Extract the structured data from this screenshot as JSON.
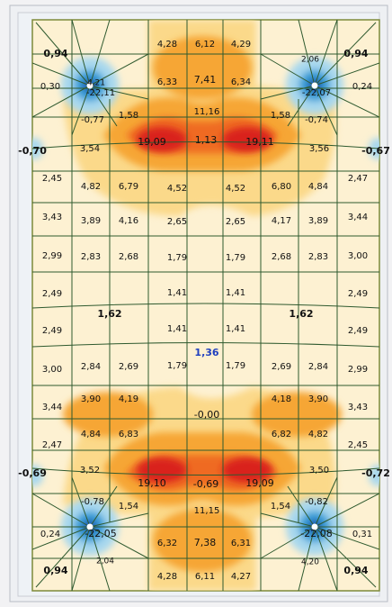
{
  "colors": {
    "background": "#f2f2f4",
    "slab": "#fdf1d2",
    "mesh": "#2f5a2f",
    "outline": "#7d8a3a",
    "low_yellow": "#fbd98a",
    "mid_orange": "#f6a636",
    "high_orange": "#ef6a22",
    "peak_red": "#d9201a",
    "neg_light_blue": "#a8d8ee",
    "neg_blue": "#3aa0d8",
    "neg_dark_blue": "#1b4aa8",
    "label_text": "#111111",
    "center_label": "#1f3fbf"
  },
  "labels": [
    {
      "text": "0,94"
    },
    {
      "text": "4,21"
    },
    {
      "text": "4,28"
    },
    {
      "text": "6,12"
    },
    {
      "text": "4,29"
    },
    {
      "text": "2,06"
    },
    {
      "text": "0,94"
    },
    {
      "text": "0,30"
    },
    {
      "text": "6,33"
    },
    {
      "text": "7,41"
    },
    {
      "text": "6,34"
    },
    {
      "text": "0,24"
    },
    {
      "text": "-22,11"
    },
    {
      "text": "-22,07"
    },
    {
      "text": "-0,77"
    },
    {
      "text": "1,58"
    },
    {
      "text": "11,16"
    },
    {
      "text": "1,58"
    },
    {
      "text": "-0,74"
    },
    {
      "text": "-0,70"
    },
    {
      "text": "3,54"
    },
    {
      "text": "19,09"
    },
    {
      "text": "1,13"
    },
    {
      "text": "19,11"
    },
    {
      "text": "3,56"
    },
    {
      "text": "-0,67"
    },
    {
      "text": "2,45"
    },
    {
      "text": "4,82"
    },
    {
      "text": "6,79"
    },
    {
      "text": "4,52"
    },
    {
      "text": "4,52"
    },
    {
      "text": "6,80"
    },
    {
      "text": "4,84"
    },
    {
      "text": "2,47"
    },
    {
      "text": "3,43"
    },
    {
      "text": "3,89"
    },
    {
      "text": "4,16"
    },
    {
      "text": "2,65"
    },
    {
      "text": "2,65"
    },
    {
      "text": "4,17"
    },
    {
      "text": "3,89"
    },
    {
      "text": "3,44"
    },
    {
      "text": "2,99"
    },
    {
      "text": "2,83"
    },
    {
      "text": "2,68"
    },
    {
      "text": "1,79"
    },
    {
      "text": "1,79"
    },
    {
      "text": "2,68"
    },
    {
      "text": "2,83"
    },
    {
      "text": "3,00"
    },
    {
      "text": "2,49"
    },
    {
      "text": "1,41"
    },
    {
      "text": "1,41"
    },
    {
      "text": "2,49"
    },
    {
      "text": "1,62"
    },
    {
      "text": "1,62"
    },
    {
      "text": "2,49"
    },
    {
      "text": "1,41"
    },
    {
      "text": "1,41"
    },
    {
      "text": "2,49"
    },
    {
      "text": "1,36"
    },
    {
      "text": "3,00"
    },
    {
      "text": "2,84"
    },
    {
      "text": "2,69"
    },
    {
      "text": "1,79"
    },
    {
      "text": "1,79"
    },
    {
      "text": "2,69"
    },
    {
      "text": "2,84"
    },
    {
      "text": "2,99"
    },
    {
      "text": "3,44"
    },
    {
      "text": "3,90"
    },
    {
      "text": "4,19"
    },
    {
      "text": "-0,00"
    },
    {
      "text": "4,18"
    },
    {
      "text": "3,90"
    },
    {
      "text": "3,43"
    },
    {
      "text": "2,47"
    },
    {
      "text": "4,84"
    },
    {
      "text": "6,83"
    },
    {
      "text": "6,82"
    },
    {
      "text": "4,82"
    },
    {
      "text": "2,45"
    },
    {
      "text": "-0,69"
    },
    {
      "text": "3,52"
    },
    {
      "text": "19,10"
    },
    {
      "text": "-0,69"
    },
    {
      "text": "19,09"
    },
    {
      "text": "3,50"
    },
    {
      "text": "-0,72"
    },
    {
      "text": "-0,78"
    },
    {
      "text": "1,54"
    },
    {
      "text": "11,15"
    },
    {
      "text": "1,54"
    },
    {
      "text": "-0,82"
    },
    {
      "text": "0,24"
    },
    {
      "text": "-22,05"
    },
    {
      "text": "-22,08"
    },
    {
      "text": "0,31"
    },
    {
      "text": "6,32"
    },
    {
      "text": "7,38"
    },
    {
      "text": "6,31"
    },
    {
      "text": "2,04"
    },
    {
      "text": "4,20"
    },
    {
      "text": "0,94"
    },
    {
      "text": "4,28"
    },
    {
      "text": "6,11"
    },
    {
      "text": "4,27"
    },
    {
      "text": "0,94"
    }
  ]
}
